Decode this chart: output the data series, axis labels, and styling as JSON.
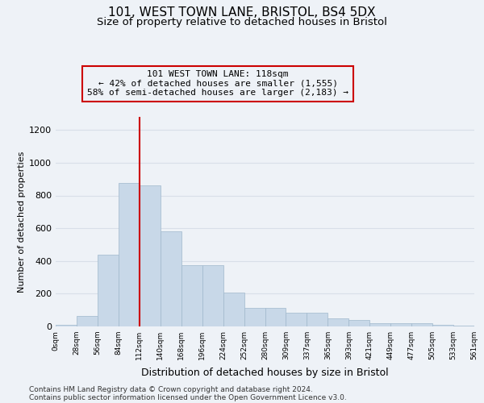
{
  "title1": "101, WEST TOWN LANE, BRISTOL, BS4 5DX",
  "title2": "Size of property relative to detached houses in Bristol",
  "xlabel": "Distribution of detached houses by size in Bristol",
  "ylabel": "Number of detached properties",
  "bar_values": [
    10,
    65,
    440,
    875,
    860,
    580,
    375,
    375,
    205,
    115,
    115,
    85,
    85,
    50,
    40,
    20,
    18,
    18,
    10,
    5
  ],
  "bar_color": "#c8d8e8",
  "bar_edge_color": "#a0b8cc",
  "x_labels": [
    "0sqm",
    "28sqm",
    "56sqm",
    "84sqm",
    "112sqm",
    "140sqm",
    "168sqm",
    "196sqm",
    "224sqm",
    "252sqm",
    "280sqm",
    "309sqm",
    "337sqm",
    "365sqm",
    "393sqm",
    "421sqm",
    "449sqm",
    "477sqm",
    "505sqm",
    "533sqm",
    "561sqm"
  ],
  "ylim": [
    0,
    1280
  ],
  "yticks": [
    0,
    200,
    400,
    600,
    800,
    1000,
    1200
  ],
  "annotation_line1": "101 WEST TOWN LANE: 118sqm",
  "annotation_line2": "← 42% of detached houses are smaller (1,555)",
  "annotation_line3": "58% of semi-detached houses are larger (2,183) →",
  "vline_x": 4.0,
  "vline_color": "#cc0000",
  "box_edge_color": "#cc0000",
  "footer1": "Contains HM Land Registry data © Crown copyright and database right 2024.",
  "footer2": "Contains public sector information licensed under the Open Government Licence v3.0.",
  "bg_color": "#eef2f7",
  "grid_color": "#d8dfe8",
  "title1_fontsize": 11,
  "title2_fontsize": 9.5,
  "xlabel_fontsize": 9,
  "ylabel_fontsize": 8,
  "annotation_fontsize": 8,
  "footer_fontsize": 6.5,
  "ytick_fontsize": 8,
  "xtick_fontsize": 6.5
}
